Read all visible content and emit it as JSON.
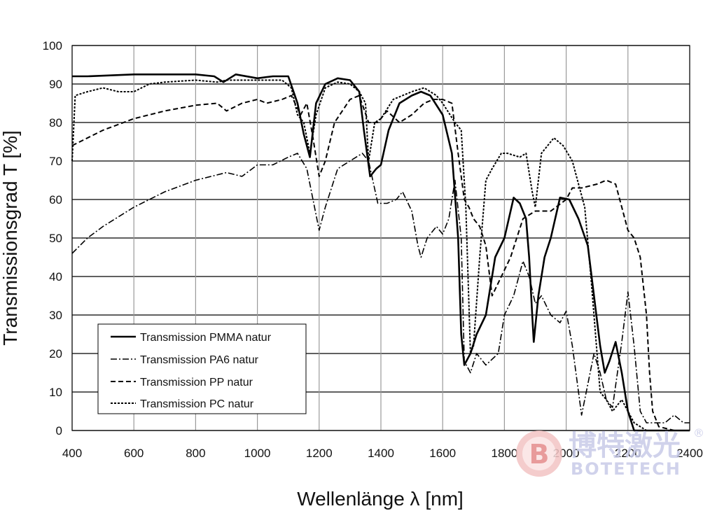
{
  "chart_data": {
    "type": "line",
    "xlabel": "Wellenlänge λ [nm]",
    "ylabel": "Transmissionsgrad T [%]",
    "xlim": [
      400,
      2400
    ],
    "ylim": [
      0,
      100
    ],
    "xticks": [
      400,
      600,
      800,
      1000,
      1200,
      1400,
      1600,
      1800,
      2000,
      2200,
      2400
    ],
    "yticks": [
      0,
      10,
      20,
      30,
      40,
      50,
      60,
      70,
      80,
      90,
      100
    ],
    "grid": true,
    "legend_position": "bottom-left",
    "series": [
      {
        "name": "Transmission PMMA natur",
        "style": "solid",
        "points": [
          [
            400,
            92
          ],
          [
            450,
            92
          ],
          [
            600,
            92.5
          ],
          [
            700,
            92.5
          ],
          [
            800,
            92.5
          ],
          [
            860,
            92
          ],
          [
            890,
            90.5
          ],
          [
            930,
            92.5
          ],
          [
            1000,
            91.5
          ],
          [
            1050,
            92
          ],
          [
            1100,
            92
          ],
          [
            1130,
            85
          ],
          [
            1150,
            77
          ],
          [
            1170,
            71
          ],
          [
            1190,
            85
          ],
          [
            1220,
            90
          ],
          [
            1260,
            91.5
          ],
          [
            1300,
            91
          ],
          [
            1330,
            88
          ],
          [
            1345,
            78
          ],
          [
            1365,
            66
          ],
          [
            1385,
            68
          ],
          [
            1400,
            69
          ],
          [
            1425,
            78
          ],
          [
            1460,
            85
          ],
          [
            1500,
            87
          ],
          [
            1530,
            88
          ],
          [
            1560,
            87
          ],
          [
            1600,
            82
          ],
          [
            1630,
            72
          ],
          [
            1650,
            50
          ],
          [
            1660,
            25
          ],
          [
            1670,
            17
          ],
          [
            1690,
            20
          ],
          [
            1710,
            25
          ],
          [
            1740,
            30
          ],
          [
            1770,
            45
          ],
          [
            1800,
            50
          ],
          [
            1830,
            60.5
          ],
          [
            1850,
            59
          ],
          [
            1870,
            55
          ],
          [
            1880,
            45
          ],
          [
            1890,
            30
          ],
          [
            1895,
            23
          ],
          [
            1910,
            35
          ],
          [
            1930,
            45
          ],
          [
            1950,
            50
          ],
          [
            1980,
            60.5
          ],
          [
            2010,
            60
          ],
          [
            2040,
            55
          ],
          [
            2070,
            48
          ],
          [
            2090,
            35
          ],
          [
            2110,
            22
          ],
          [
            2125,
            15
          ],
          [
            2140,
            18
          ],
          [
            2160,
            23
          ],
          [
            2180,
            15
          ],
          [
            2200,
            5
          ],
          [
            2220,
            0
          ],
          [
            2260,
            0
          ],
          [
            2300,
            0
          ],
          [
            2400,
            0
          ]
        ]
      },
      {
        "name": "Transmission PA6 natur",
        "style": "dashdot",
        "points": [
          [
            400,
            46
          ],
          [
            450,
            50
          ],
          [
            500,
            53
          ],
          [
            600,
            58
          ],
          [
            700,
            62
          ],
          [
            800,
            65
          ],
          [
            900,
            67
          ],
          [
            950,
            66
          ],
          [
            1000,
            69
          ],
          [
            1050,
            69
          ],
          [
            1100,
            71
          ],
          [
            1130,
            72
          ],
          [
            1160,
            68
          ],
          [
            1180,
            60
          ],
          [
            1200,
            52
          ],
          [
            1220,
            58
          ],
          [
            1260,
            68
          ],
          [
            1300,
            70
          ],
          [
            1340,
            72
          ],
          [
            1360,
            70
          ],
          [
            1390,
            59
          ],
          [
            1420,
            59
          ],
          [
            1450,
            60
          ],
          [
            1470,
            62
          ],
          [
            1500,
            57
          ],
          [
            1520,
            48
          ],
          [
            1530,
            45
          ],
          [
            1550,
            50
          ],
          [
            1580,
            53
          ],
          [
            1600,
            51
          ],
          [
            1620,
            55
          ],
          [
            1640,
            65
          ],
          [
            1660,
            50
          ],
          [
            1670,
            18
          ],
          [
            1690,
            15
          ],
          [
            1710,
            20
          ],
          [
            1740,
            17
          ],
          [
            1780,
            20
          ],
          [
            1800,
            30
          ],
          [
            1830,
            35
          ],
          [
            1860,
            44
          ],
          [
            1880,
            40
          ],
          [
            1900,
            33
          ],
          [
            1920,
            35
          ],
          [
            1950,
            30
          ],
          [
            1980,
            28
          ],
          [
            2000,
            31
          ],
          [
            2020,
            22
          ],
          [
            2040,
            10
          ],
          [
            2050,
            4
          ],
          [
            2070,
            12
          ],
          [
            2090,
            20
          ],
          [
            2110,
            15
          ],
          [
            2130,
            8
          ],
          [
            2150,
            6
          ],
          [
            2180,
            23
          ],
          [
            2200,
            36
          ],
          [
            2220,
            22
          ],
          [
            2240,
            5
          ],
          [
            2260,
            2
          ],
          [
            2290,
            2
          ],
          [
            2320,
            2
          ],
          [
            2350,
            4
          ],
          [
            2380,
            2
          ],
          [
            2400,
            2
          ]
        ]
      },
      {
        "name": "Transmission PP natur",
        "style": "dashed",
        "points": [
          [
            400,
            74
          ],
          [
            500,
            78
          ],
          [
            600,
            81
          ],
          [
            700,
            83
          ],
          [
            800,
            84.5
          ],
          [
            870,
            85
          ],
          [
            900,
            83
          ],
          [
            950,
            85
          ],
          [
            1000,
            86
          ],
          [
            1030,
            85
          ],
          [
            1080,
            86
          ],
          [
            1110,
            87
          ],
          [
            1140,
            82
          ],
          [
            1160,
            85
          ],
          [
            1180,
            76
          ],
          [
            1200,
            66
          ],
          [
            1220,
            70
          ],
          [
            1250,
            80
          ],
          [
            1300,
            86
          ],
          [
            1330,
            87
          ],
          [
            1360,
            80
          ],
          [
            1390,
            80
          ],
          [
            1420,
            83
          ],
          [
            1460,
            80
          ],
          [
            1500,
            82
          ],
          [
            1540,
            85
          ],
          [
            1570,
            86
          ],
          [
            1600,
            86
          ],
          [
            1630,
            85
          ],
          [
            1650,
            72
          ],
          [
            1670,
            60
          ],
          [
            1685,
            58
          ],
          [
            1700,
            55
          ],
          [
            1720,
            53
          ],
          [
            1740,
            48
          ],
          [
            1760,
            35
          ],
          [
            1790,
            40
          ],
          [
            1820,
            45
          ],
          [
            1840,
            50
          ],
          [
            1860,
            55
          ],
          [
            1900,
            57
          ],
          [
            1950,
            57
          ],
          [
            2000,
            60
          ],
          [
            2020,
            63
          ],
          [
            2050,
            63
          ],
          [
            2100,
            64
          ],
          [
            2130,
            65
          ],
          [
            2160,
            64
          ],
          [
            2200,
            52
          ],
          [
            2220,
            50
          ],
          [
            2240,
            45
          ],
          [
            2260,
            30
          ],
          [
            2270,
            15
          ],
          [
            2280,
            5
          ],
          [
            2300,
            1
          ],
          [
            2350,
            0
          ],
          [
            2400,
            0
          ]
        ]
      },
      {
        "name": "Transmission PC natur",
        "style": "dotted",
        "points": [
          [
            400,
            70
          ],
          [
            410,
            87
          ],
          [
            450,
            88
          ],
          [
            500,
            89
          ],
          [
            550,
            88
          ],
          [
            600,
            88
          ],
          [
            650,
            90
          ],
          [
            700,
            90.5
          ],
          [
            800,
            91
          ],
          [
            870,
            90.5
          ],
          [
            900,
            91
          ],
          [
            1000,
            91
          ],
          [
            1080,
            91
          ],
          [
            1110,
            89
          ],
          [
            1130,
            82
          ],
          [
            1150,
            80
          ],
          [
            1170,
            72
          ],
          [
            1190,
            82
          ],
          [
            1220,
            89
          ],
          [
            1260,
            90.5
          ],
          [
            1300,
            90
          ],
          [
            1330,
            88
          ],
          [
            1350,
            85
          ],
          [
            1360,
            70
          ],
          [
            1380,
            80
          ],
          [
            1400,
            81
          ],
          [
            1440,
            86
          ],
          [
            1500,
            88
          ],
          [
            1540,
            89
          ],
          [
            1580,
            87
          ],
          [
            1600,
            85
          ],
          [
            1640,
            80
          ],
          [
            1660,
            78
          ],
          [
            1675,
            58
          ],
          [
            1690,
            20
          ],
          [
            1700,
            22
          ],
          [
            1720,
            45
          ],
          [
            1740,
            65
          ],
          [
            1760,
            68
          ],
          [
            1790,
            72
          ],
          [
            1810,
            72
          ],
          [
            1850,
            71
          ],
          [
            1870,
            72
          ],
          [
            1890,
            62
          ],
          [
            1900,
            58
          ],
          [
            1920,
            72
          ],
          [
            1960,
            76
          ],
          [
            1990,
            74
          ],
          [
            2020,
            70
          ],
          [
            2060,
            58
          ],
          [
            2080,
            40
          ],
          [
            2100,
            20
          ],
          [
            2110,
            10
          ],
          [
            2130,
            8
          ],
          [
            2150,
            5
          ],
          [
            2180,
            8
          ],
          [
            2200,
            5
          ],
          [
            2220,
            2
          ],
          [
            2260,
            0
          ],
          [
            2300,
            0
          ],
          [
            2400,
            0
          ]
        ]
      }
    ]
  },
  "watermark": {
    "text_cn": "博特激光",
    "text_en": "BOTETECH",
    "registered": "®"
  }
}
